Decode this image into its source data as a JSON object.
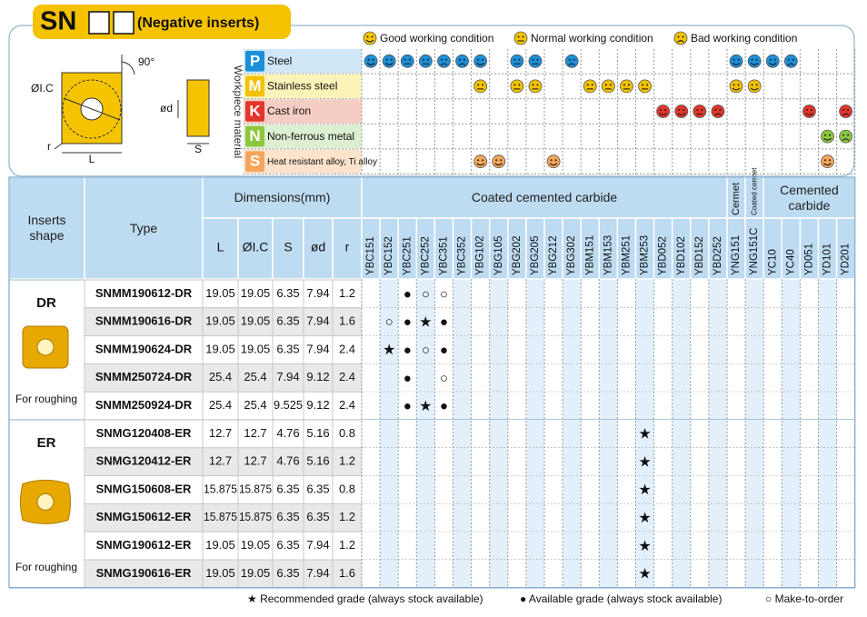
{
  "header": {
    "title": "SN",
    "subtitle": "(Negative inserts)"
  },
  "legend": [
    {
      "condition": "good",
      "label": "Good working condition"
    },
    {
      "condition": "normal",
      "label": "Normal working condition"
    },
    {
      "condition": "bad",
      "label": "Bad working condition"
    }
  ],
  "diagram": {
    "angle": "90°",
    "ic": "ØI.C",
    "d": "ød",
    "r": "r",
    "l": "L",
    "s": "S"
  },
  "materials": {
    "title": "Workpiece material",
    "rows": [
      {
        "letter": "P",
        "name": "Steel",
        "color": "#1b8fd8",
        "bg": "#cfe7f7",
        "suitability": [
          "good",
          "good",
          "normal",
          "normal",
          "bad",
          "bad",
          "good",
          null,
          "normal",
          "normal",
          null,
          "bad",
          null,
          null,
          null,
          null,
          null,
          null,
          null,
          null,
          "good",
          "good",
          "good",
          "bad",
          null,
          null,
          null
        ]
      },
      {
        "letter": "M",
        "name": "Stainless steel",
        "color": "#f2c200",
        "bg": "#fcf3b8",
        "suitability": [
          null,
          null,
          null,
          null,
          null,
          null,
          "normal",
          null,
          "normal",
          "normal",
          null,
          null,
          "normal",
          "normal",
          "normal",
          "normal",
          null,
          null,
          null,
          null,
          "good",
          "good",
          null,
          null,
          null,
          null,
          null
        ]
      },
      {
        "letter": "K",
        "name": "Cast iron",
        "color": "#e2362b",
        "bg": "#f6cdc4",
        "suitability": [
          null,
          null,
          null,
          null,
          null,
          null,
          null,
          null,
          null,
          null,
          null,
          null,
          null,
          null,
          null,
          null,
          "good",
          "good",
          "normal",
          "bad",
          null,
          null,
          null,
          null,
          "good",
          null,
          "bad"
        ]
      },
      {
        "letter": "N",
        "name": "Non-ferrous metal",
        "color": "#8cc63f",
        "bg": "#dcefd3",
        "suitability": [
          null,
          null,
          null,
          null,
          null,
          null,
          null,
          null,
          null,
          null,
          null,
          null,
          null,
          null,
          null,
          null,
          null,
          null,
          null,
          null,
          null,
          null,
          null,
          null,
          null,
          "good",
          "bad"
        ]
      },
      {
        "letter": "S",
        "name": "Heat resistant alloy, Ti alloy",
        "color": "#f5a55a",
        "bg": "#fbe3cc",
        "suitability": [
          null,
          null,
          null,
          null,
          null,
          null,
          "good",
          "good",
          null,
          null,
          "good",
          null,
          null,
          null,
          null,
          null,
          null,
          null,
          null,
          null,
          null,
          null,
          null,
          null,
          null,
          "good",
          null
        ]
      }
    ]
  },
  "table": {
    "columns": {
      "shape": "Inserts shape",
      "type": "Type",
      "dimensions": "Dimensions(mm)",
      "dims": [
        "L",
        "ØI.C",
        "S",
        "ød",
        "r"
      ],
      "groups": [
        {
          "label": "Coated cemented carbide",
          "grades": [
            "YBC151",
            "YBC152",
            "YBC251",
            "YBC252",
            "YBC351",
            "YBC352",
            "YBG102",
            "YBG105",
            "YBG202",
            "YBG205",
            "YBG212",
            "YBG302",
            "YBM151",
            "YBM153",
            "YBM251",
            "YBM253",
            "YBD052",
            "YBD102",
            "YBD152",
            "YBD252"
          ]
        },
        {
          "label": "Cermet",
          "grades": [
            "YNG151"
          ]
        },
        {
          "label": "Coated cermet",
          "grades": [
            "YNG151C"
          ]
        },
        {
          "label": "Cemented carbide",
          "grades": [
            "YC10",
            "YC40",
            "YD051",
            "YD101",
            "YD201"
          ]
        }
      ]
    },
    "groups": [
      {
        "name": "DR",
        "note": "For roughing",
        "rows": [
          {
            "type": "SNMM190612-DR",
            "dims": [
              19.05,
              19.05,
              6.35,
              7.94,
              1.2
            ],
            "grades": [
              null,
              null,
              "●",
              "○",
              "○",
              null,
              null,
              null,
              null,
              null,
              null,
              null,
              null,
              null,
              null,
              null,
              null,
              null,
              null,
              null,
              null,
              null,
              null,
              null,
              null,
              null,
              null
            ]
          },
          {
            "type": "SNMM190616-DR",
            "dims": [
              19.05,
              19.05,
              6.35,
              7.94,
              1.6
            ],
            "grades": [
              null,
              "○",
              "●",
              "★",
              "●",
              null,
              null,
              null,
              null,
              null,
              null,
              null,
              null,
              null,
              null,
              null,
              null,
              null,
              null,
              null,
              null,
              null,
              null,
              null,
              null,
              null,
              null
            ]
          },
          {
            "type": "SNMM190624-DR",
            "dims": [
              19.05,
              19.05,
              6.35,
              7.94,
              2.4
            ],
            "grades": [
              null,
              "★",
              "●",
              "○",
              "●",
              null,
              null,
              null,
              null,
              null,
              null,
              null,
              null,
              null,
              null,
              null,
              null,
              null,
              null,
              null,
              null,
              null,
              null,
              null,
              null,
              null,
              null
            ]
          },
          {
            "type": "SNMM250724-DR",
            "dims": [
              25.4,
              25.4,
              7.94,
              9.12,
              2.4
            ],
            "grades": [
              null,
              null,
              "●",
              null,
              "○",
              null,
              null,
              null,
              null,
              null,
              null,
              null,
              null,
              null,
              null,
              null,
              null,
              null,
              null,
              null,
              null,
              null,
              null,
              null,
              null,
              null,
              null
            ]
          },
          {
            "type": "SNMM250924-DR",
            "dims": [
              25.4,
              25.4,
              9.525,
              9.12,
              2.4
            ],
            "grades": [
              null,
              null,
              "●",
              "★",
              "●",
              null,
              null,
              null,
              null,
              null,
              null,
              null,
              null,
              null,
              null,
              null,
              null,
              null,
              null,
              null,
              null,
              null,
              null,
              null,
              null,
              null,
              null
            ]
          }
        ]
      },
      {
        "name": "ER",
        "note": "For roughing",
        "rows": [
          {
            "type": "SNMG120408-ER",
            "dims": [
              12.7,
              12.7,
              4.76,
              5.16,
              0.8
            ],
            "grades": [
              null,
              null,
              null,
              null,
              null,
              null,
              null,
              null,
              null,
              null,
              null,
              null,
              null,
              null,
              null,
              "★",
              null,
              null,
              null,
              null,
              null,
              null,
              null,
              null,
              null,
              null,
              null
            ]
          },
          {
            "type": "SNMG120412-ER",
            "dims": [
              12.7,
              12.7,
              4.76,
              5.16,
              1.2
            ],
            "grades": [
              null,
              null,
              null,
              null,
              null,
              null,
              null,
              null,
              null,
              null,
              null,
              null,
              null,
              null,
              null,
              "★",
              null,
              null,
              null,
              null,
              null,
              null,
              null,
              null,
              null,
              null,
              null
            ]
          },
          {
            "type": "SNMG150608-ER",
            "dims": [
              15.875,
              15.875,
              6.35,
              6.35,
              0.8
            ],
            "grades": [
              null,
              null,
              null,
              null,
              null,
              null,
              null,
              null,
              null,
              null,
              null,
              null,
              null,
              null,
              null,
              "★",
              null,
              null,
              null,
              null,
              null,
              null,
              null,
              null,
              null,
              null,
              null
            ]
          },
          {
            "type": "SNMG150612-ER",
            "dims": [
              15.875,
              15.875,
              6.35,
              6.35,
              1.2
            ],
            "grades": [
              null,
              null,
              null,
              null,
              null,
              null,
              null,
              null,
              null,
              null,
              null,
              null,
              null,
              null,
              null,
              "★",
              null,
              null,
              null,
              null,
              null,
              null,
              null,
              null,
              null,
              null,
              null
            ]
          },
          {
            "type": "SNMG190612-ER",
            "dims": [
              19.05,
              19.05,
              6.35,
              7.94,
              1.2
            ],
            "grades": [
              null,
              null,
              null,
              null,
              null,
              null,
              null,
              null,
              null,
              null,
              null,
              null,
              null,
              null,
              null,
              "★",
              null,
              null,
              null,
              null,
              null,
              null,
              null,
              null,
              null,
              null,
              null
            ]
          },
          {
            "type": "SNMG190616-ER",
            "dims": [
              19.05,
              19.05,
              6.35,
              7.94,
              1.6
            ],
            "grades": [
              null,
              null,
              null,
              null,
              null,
              null,
              null,
              null,
              null,
              null,
              null,
              null,
              null,
              null,
              null,
              "★",
              null,
              null,
              null,
              null,
              null,
              null,
              null,
              null,
              null,
              null,
              null
            ]
          }
        ]
      }
    ]
  },
  "footer": [
    "★ Recommended grade (always stock available)",
    "● Available grade (always stock available)",
    "○ Make-to-order"
  ]
}
